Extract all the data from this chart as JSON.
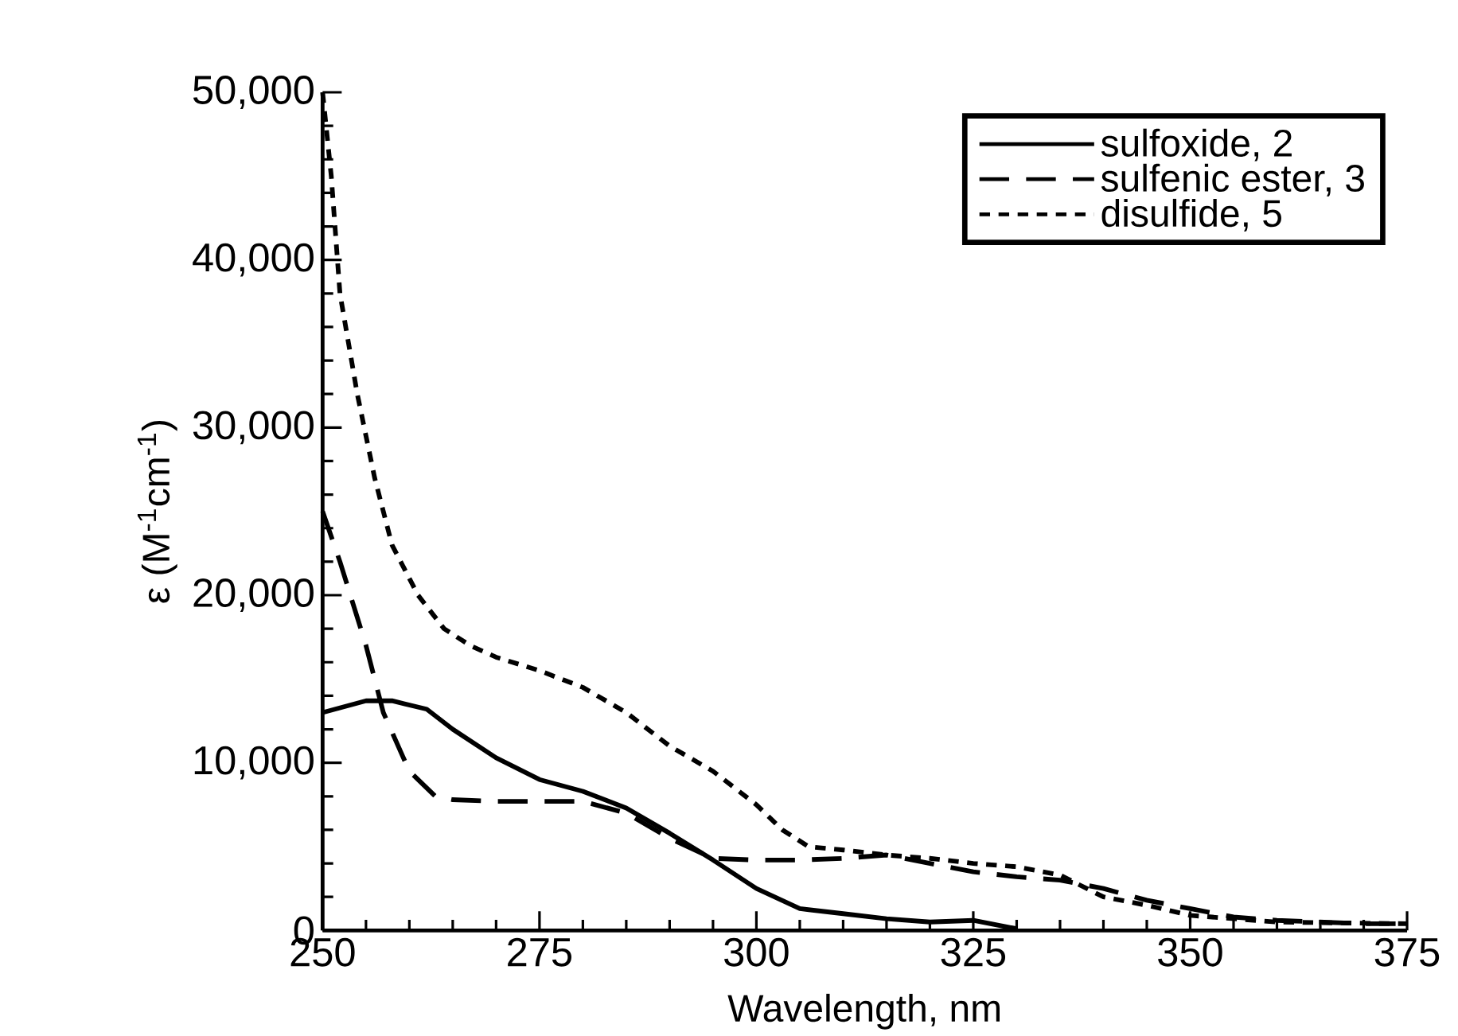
{
  "chart_data": {
    "type": "line",
    "xlabel": "Wavelength, nm",
    "ylabel": "ε  (M$^{-1}$cm$^{-1}$)",
    "xlim": [
      250,
      375
    ],
    "xticks": [
      250,
      275,
      300,
      325,
      350,
      375
    ],
    "ylim": [
      0,
      50000
    ],
    "yticks": [
      {
        "value": 0,
        "label": "0"
      },
      {
        "value": 10000,
        "label": "10,000"
      },
      {
        "value": 20000,
        "label": "20,000"
      },
      {
        "value": 30000,
        "label": "30,000"
      },
      {
        "value": 40000,
        "label": "40,000"
      },
      {
        "value": 50000,
        "label": "50,000"
      }
    ],
    "grid": false,
    "legend": "top right",
    "marker": "none",
    "series": [
      {
        "name": "sulfoxide, 2",
        "color": "#000000",
        "line_style": "solid",
        "x": [
          250,
          255,
          258,
          262,
          265,
          270,
          275,
          280,
          285,
          290,
          295,
          300,
          305,
          310,
          315,
          320,
          325,
          330
        ],
        "values": [
          13000,
          13700,
          13700,
          13200,
          12000,
          10300,
          9000,
          8300,
          7300,
          5800,
          4200,
          2500,
          1300,
          1000,
          700,
          500,
          600,
          100
        ]
      },
      {
        "name": "sulfenic ester, 3",
        "color": "#000000",
        "line_style": "dashed",
        "x": [
          250,
          252,
          255,
          257,
          260,
          263,
          265,
          270,
          275,
          280,
          285,
          290,
          295,
          300,
          305,
          310,
          315,
          320,
          325,
          330,
          335,
          340,
          345,
          350,
          355,
          360,
          370,
          375
        ],
        "values": [
          25000,
          22000,
          17000,
          13000,
          9500,
          8000,
          7800,
          7700,
          7700,
          7700,
          7000,
          5500,
          4300,
          4200,
          4200,
          4300,
          4500,
          4000,
          3500,
          3200,
          3000,
          2500,
          1800,
          1300,
          800,
          600,
          400,
          400
        ]
      },
      {
        "name": "disulfide, 5",
        "color": "#000000",
        "line_style": "dotted",
        "x": [
          250,
          251,
          252,
          254,
          256,
          258,
          261,
          264,
          267,
          270,
          275,
          280,
          285,
          290,
          295,
          300,
          303,
          306,
          310,
          315,
          320,
          325,
          330,
          335,
          340,
          345,
          350,
          360,
          375
        ],
        "values": [
          50000,
          45000,
          38000,
          32000,
          27000,
          23000,
          20000,
          18000,
          17000,
          16300,
          15500,
          14500,
          13000,
          11000,
          9500,
          7500,
          6000,
          5000,
          4800,
          4500,
          4300,
          4000,
          3800,
          3300,
          2000,
          1500,
          900,
          500,
          400
        ]
      }
    ]
  }
}
